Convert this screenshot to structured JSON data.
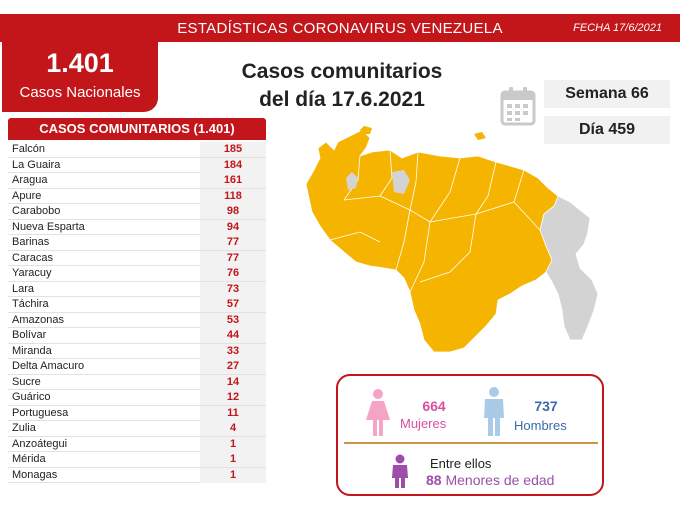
{
  "header": {
    "title": "ESTADÍSTICAS CORONAVIRUS VENEZUELA",
    "date": "FECHA 17/6/2021"
  },
  "national": {
    "total": "1.401",
    "label": "Casos Nacionales"
  },
  "headline": {
    "line1": "Casos comunitarios",
    "line2": "del día 17.6.2021"
  },
  "info": {
    "week": "Semana 66",
    "day": "Día 459"
  },
  "table": {
    "title": "CASOS COMUNITARIOS (1.401)",
    "rows": [
      {
        "name": "Falcón",
        "value": "185"
      },
      {
        "name": "La Guaira",
        "value": "184"
      },
      {
        "name": "Aragua",
        "value": "161"
      },
      {
        "name": "Apure",
        "value": "118"
      },
      {
        "name": "Carabobo",
        "value": "98"
      },
      {
        "name": "Nueva Esparta",
        "value": "94"
      },
      {
        "name": "Barinas",
        "value": "77"
      },
      {
        "name": "Caracas",
        "value": "77"
      },
      {
        "name": "Yaracuy",
        "value": "76"
      },
      {
        "name": "Lara",
        "value": "73"
      },
      {
        "name": "Táchira",
        "value": "57"
      },
      {
        "name": "Amazonas",
        "value": "53"
      },
      {
        "name": "Bolívar",
        "value": "44"
      },
      {
        "name": "Miranda",
        "value": "33"
      },
      {
        "name": "Delta Amacuro",
        "value": "27"
      },
      {
        "name": "Sucre",
        "value": "14"
      },
      {
        "name": "Guárico",
        "value": "12"
      },
      {
        "name": "Portuguesa",
        "value": "11"
      },
      {
        "name": "Zulia",
        "value": "4"
      },
      {
        "name": "Anzoátegui",
        "value": "1"
      },
      {
        "name": "Mérida",
        "value": "1"
      },
      {
        "name": "Monagas",
        "value": "1"
      }
    ]
  },
  "gender": {
    "women_count": "664",
    "women_label": "Mujeres",
    "men_count": "737",
    "men_label": "Hombres",
    "among_label": "Entre ellos",
    "minors_count": "88",
    "minors_label": "Menores de edad"
  },
  "colors": {
    "accent": "#c2161b",
    "map_fill": "#f4b400",
    "map_gray": "#d3d3d3",
    "women": "#f5a3c7",
    "men": "#a9cbe8",
    "minors": "#9b4fa8"
  },
  "icons": {
    "calendar": "calendar-icon",
    "woman": "woman-icon",
    "man": "man-icon",
    "child": "child-icon"
  }
}
